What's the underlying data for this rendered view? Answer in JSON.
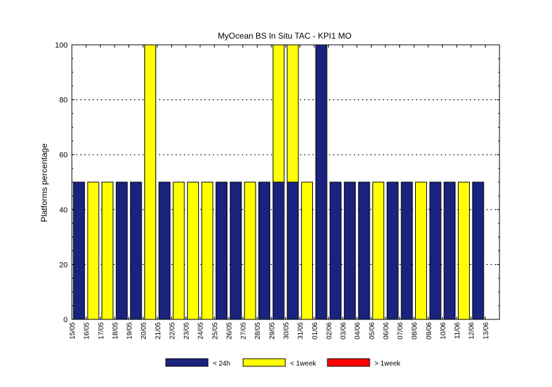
{
  "chart_data": {
    "type": "bar",
    "stacked": true,
    "title": "MyOcean  BS In Situ TAC - KPI1  MO",
    "xlabel": "",
    "ylabel": "Platforms percentage",
    "ylim": [
      0,
      100
    ],
    "yticks": [
      0,
      20,
      40,
      60,
      80,
      100
    ],
    "grid": "horizontal dotted",
    "legend_position": "bottom",
    "categories": [
      "15/05",
      "16/05",
      "17/05",
      "18/05",
      "19/05",
      "20/05",
      "21/05",
      "22/05",
      "23/05",
      "24/05",
      "25/05",
      "26/05",
      "27/05",
      "28/05",
      "29/05",
      "30/05",
      "31/05",
      "01/06",
      "02/06",
      "03/06",
      "04/06",
      "05/06",
      "06/06",
      "07/06",
      "08/06",
      "09/06",
      "10/06",
      "11/06",
      "12/06",
      "13/06"
    ],
    "series": [
      {
        "name": "< 24h",
        "color": "#1a237e",
        "values": [
          50,
          0,
          0,
          50,
          50,
          0,
          50,
          0,
          0,
          0,
          50,
          50,
          0,
          50,
          50,
          50,
          0,
          100,
          50,
          50,
          50,
          0,
          50,
          50,
          0,
          50,
          50,
          0,
          50,
          0
        ]
      },
      {
        "name": "< 1week",
        "color": "#ffff00",
        "values": [
          0,
          50,
          50,
          0,
          0,
          100,
          0,
          50,
          50,
          50,
          0,
          0,
          50,
          0,
          50,
          50,
          50,
          0,
          0,
          0,
          0,
          50,
          0,
          0,
          50,
          0,
          0,
          50,
          0,
          0
        ]
      },
      {
        "name": "> 1week",
        "color": "#ff0000",
        "values": [
          0,
          0,
          0,
          0,
          0,
          0,
          0,
          0,
          0,
          0,
          0,
          0,
          0,
          0,
          0,
          0,
          0,
          0,
          0,
          0,
          0,
          0,
          0,
          0,
          0,
          0,
          0,
          0,
          0,
          0
        ]
      }
    ]
  }
}
